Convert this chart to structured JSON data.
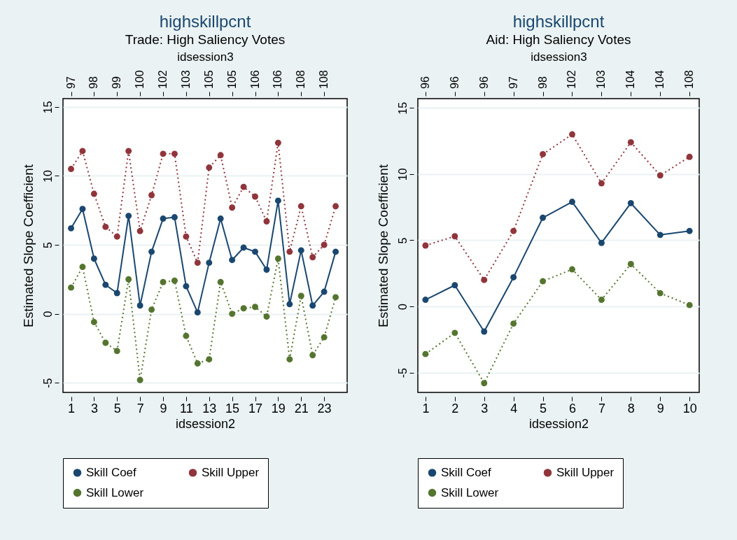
{
  "chart_data": [
    {
      "type": "line",
      "title": "highskillpcnt",
      "subtitle": "Trade: High Saliency Votes",
      "xlabel": "idsession2",
      "x2label": "idsession3",
      "ylabel": "Estimated Slope Coefficient",
      "x": [
        1,
        2,
        3,
        4,
        5,
        6,
        7,
        8,
        9,
        10,
        11,
        12,
        13,
        14,
        15,
        16,
        17,
        18,
        19,
        20,
        21,
        22,
        23,
        24
      ],
      "xlim": [
        0.3,
        25
      ],
      "xticks": [
        1,
        3,
        5,
        7,
        9,
        11,
        13,
        15,
        17,
        19,
        21,
        23
      ],
      "annotations": [
        {
          "text": "97",
          "x": 1
        },
        {
          "text": "98",
          "x": 3
        },
        {
          "text": "99",
          "x": 5
        },
        {
          "text": "100",
          "x": 7
        },
        {
          "text": "102",
          "x": 9
        },
        {
          "text": "103",
          "x": 11
        },
        {
          "text": "105",
          "x": 13
        },
        {
          "text": "105",
          "x": 15
        },
        {
          "text": "106",
          "x": 17
        },
        {
          "text": "106",
          "x": 19
        },
        {
          "text": "108",
          "x": 21
        },
        {
          "text": "108",
          "x": 23
        }
      ],
      "ylim": [
        -5.7,
        15.6
      ],
      "yticks": [
        -5,
        0,
        5,
        10,
        15
      ],
      "series": [
        {
          "name": "Skill Coef",
          "color": "#1a476f",
          "line_style": "solid",
          "values": [
            6.2,
            7.6,
            4.0,
            2.1,
            1.5,
            7.1,
            0.6,
            4.5,
            6.9,
            7.0,
            2.0,
            0.1,
            3.7,
            6.9,
            3.9,
            4.8,
            4.5,
            3.2,
            8.2,
            0.7,
            4.6,
            0.6,
            1.6,
            4.5
          ]
        },
        {
          "name": "Skill Upper",
          "color": "#90353b",
          "line_style": "dotted",
          "values": [
            10.5,
            11.8,
            8.7,
            6.3,
            5.6,
            11.8,
            6.0,
            8.6,
            11.6,
            11.6,
            5.6,
            3.7,
            10.6,
            11.5,
            7.7,
            9.2,
            8.5,
            6.7,
            12.4,
            4.5,
            7.8,
            4.1,
            5.0,
            7.8
          ]
        },
        {
          "name": "Skill Lower",
          "color": "#55752f",
          "line_style": "dotted",
          "values": [
            1.9,
            3.4,
            -0.6,
            -2.1,
            -2.7,
            2.5,
            -4.8,
            0.3,
            2.3,
            2.4,
            -1.6,
            -3.6,
            -3.3,
            2.3,
            0.0,
            0.4,
            0.5,
            -0.2,
            4.0,
            -3.3,
            1.3,
            -3.0,
            -1.7,
            1.2
          ]
        }
      ],
      "marker": "circle",
      "grid": "y",
      "legend": "bottom"
    },
    {
      "type": "line",
      "title": "highskillpcnt",
      "subtitle": "Aid: High Saliency Votes",
      "xlabel": "idsession2",
      "x2label": "idsession3",
      "ylabel": "Estimated Slope Coefficient",
      "x": [
        1,
        2,
        3,
        4,
        5,
        6,
        7,
        8,
        9,
        10
      ],
      "xlim": [
        0.74,
        10.33
      ],
      "xticks": [
        1,
        2,
        3,
        4,
        5,
        6,
        7,
        8,
        9,
        10
      ],
      "annotations": [
        {
          "text": "96",
          "x": 1
        },
        {
          "text": "96",
          "x": 2
        },
        {
          "text": "96",
          "x": 3
        },
        {
          "text": "97",
          "x": 4
        },
        {
          "text": "98",
          "x": 5
        },
        {
          "text": "102",
          "x": 6
        },
        {
          "text": "103",
          "x": 7
        },
        {
          "text": "104",
          "x": 8
        },
        {
          "text": "104",
          "x": 9
        },
        {
          "text": "108",
          "x": 10
        }
      ],
      "ylim": [
        -6.5,
        15.7
      ],
      "yticks": [
        -5,
        0,
        5,
        10,
        15
      ],
      "series": [
        {
          "name": "Skill Coef",
          "color": "#1a476f",
          "line_style": "solid",
          "values": [
            0.5,
            1.6,
            -1.9,
            2.2,
            6.7,
            7.9,
            4.8,
            7.8,
            5.4,
            5.7
          ]
        },
        {
          "name": "Skill Upper",
          "color": "#90353b",
          "line_style": "dotted",
          "values": [
            4.6,
            5.3,
            2.0,
            5.7,
            11.5,
            13.0,
            9.3,
            12.4,
            9.9,
            11.3
          ]
        },
        {
          "name": "Skill Lower",
          "color": "#55752f",
          "line_style": "dotted",
          "values": [
            -3.6,
            -2.0,
            -5.8,
            -1.3,
            1.9,
            2.8,
            0.5,
            3.2,
            1.0,
            0.1
          ]
        }
      ],
      "marker": "circle",
      "grid": "y",
      "legend": "bottom"
    }
  ]
}
